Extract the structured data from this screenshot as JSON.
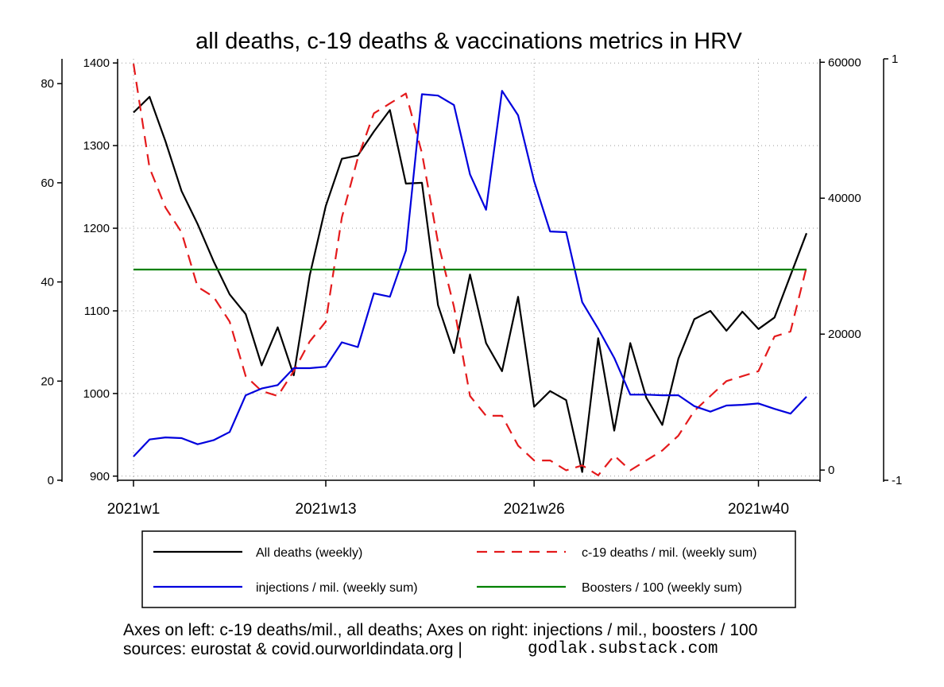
{
  "chart_data": {
    "type": "line",
    "title": "all deaths, c-19 deaths & vaccinations metrics in HRV",
    "x_ticks": [
      {
        "week": 1,
        "label": "2021w1"
      },
      {
        "week": 13,
        "label": "2021w13"
      },
      {
        "week": 26,
        "label": "2021w26"
      },
      {
        "week": 40,
        "label": "2021w40"
      }
    ],
    "x_range": [
      1,
      43
    ],
    "axes": {
      "left_outer": {
        "range": [
          0,
          85
        ],
        "ticks": [
          0,
          20,
          40,
          60,
          80
        ],
        "tick_labels": [
          "0",
          "20",
          "40",
          "60",
          "80"
        ]
      },
      "left_inner": {
        "range": [
          895,
          1405
        ],
        "ticks": [
          900,
          1000,
          1100,
          1200,
          1300,
          1400
        ],
        "tick_labels": [
          "900",
          "1000",
          "1100",
          "1200",
          "1300",
          "1400"
        ]
      },
      "right_inner": {
        "range": [
          -1500,
          60500
        ],
        "ticks": [
          0,
          20000,
          40000,
          60000
        ],
        "tick_labels": [
          "0",
          "20000",
          "40000",
          "60000"
        ]
      },
      "right_outer": {
        "range": [
          -1,
          1
        ],
        "ticks": [
          -1,
          1
        ],
        "tick_labels": [
          "-1",
          "1"
        ]
      }
    },
    "grid": true,
    "legend_position": "bottom",
    "series": [
      {
        "name": "All deaths (weekly)",
        "axis": "left_inner",
        "color": "#000000",
        "dash": "solid",
        "x": [
          1,
          2,
          3,
          4,
          5,
          6,
          7,
          8,
          9,
          10,
          11,
          12,
          13,
          14,
          15,
          16,
          17,
          18,
          19,
          20,
          21,
          22,
          23,
          24,
          25,
          26,
          27,
          28,
          29,
          30,
          31,
          32,
          33,
          34,
          35,
          36,
          37,
          38,
          39,
          40,
          41,
          42,
          43
        ],
        "values": [
          1340,
          1359,
          1305,
          1245,
          1205,
          1160,
          1120,
          1096,
          1034,
          1080,
          1022,
          1143,
          1227,
          1284,
          1288,
          1317,
          1343,
          1254,
          1255,
          1107,
          1049,
          1144,
          1061,
          1027,
          1117,
          984,
          1003,
          992,
          905,
          1067,
          955,
          1061,
          995,
          962,
          1042,
          1090,
          1100,
          1076,
          1099,
          1078,
          1092,
          1143,
          1194
        ]
      },
      {
        "name": "c-19 deaths / mil. (weekly sum)",
        "axis": "left_outer",
        "color": "#e41a1c",
        "dash": "dashed",
        "x": [
          1,
          2,
          3,
          4,
          5,
          6,
          7,
          8,
          9,
          10,
          11,
          12,
          13,
          14,
          15,
          16,
          17,
          18,
          19,
          20,
          21,
          22,
          23,
          24,
          25,
          26,
          27,
          28,
          29,
          30,
          31,
          32,
          33,
          34,
          35,
          36,
          37,
          38,
          39,
          40,
          41,
          42,
          43
        ],
        "values": [
          84,
          63,
          55,
          50,
          39,
          37,
          32,
          21,
          18,
          17,
          22,
          28,
          32,
          53,
          65,
          74,
          76,
          78,
          66,
          48,
          35,
          17,
          13,
          13,
          7,
          4,
          4,
          2,
          3,
          1,
          5,
          2,
          4,
          6,
          9,
          14,
          17,
          20,
          21,
          22,
          29,
          30,
          43
        ]
      },
      {
        "name": "injections / mil. (weekly sum)",
        "axis": "right_inner",
        "color": "#0000dd",
        "dash": "solid",
        "x": [
          1,
          2,
          3,
          4,
          5,
          6,
          7,
          8,
          9,
          10,
          11,
          12,
          13,
          14,
          15,
          16,
          17,
          18,
          19,
          20,
          21,
          22,
          23,
          24,
          25,
          26,
          27,
          28,
          29,
          30,
          31,
          32,
          33,
          34,
          35,
          36,
          37,
          38,
          39,
          40,
          41,
          42,
          43
        ],
        "values": [
          2000,
          4500,
          4800,
          4700,
          3800,
          4400,
          5600,
          11000,
          12000,
          12500,
          15000,
          15000,
          15200,
          18800,
          18100,
          26000,
          25500,
          32300,
          55300,
          55100,
          53700,
          43500,
          38300,
          55800,
          52200,
          42500,
          35100,
          35000,
          24700,
          20800,
          16500,
          11100,
          11100,
          11000,
          11000,
          9400,
          8600,
          9500,
          9600,
          9800,
          9000,
          8300,
          10800
        ]
      },
      {
        "name": "Boosters / 100 (weekly sum)",
        "axis": "right_outer",
        "color": "#008000",
        "dash": "solid",
        "x": [
          1,
          43
        ],
        "values": [
          0,
          0
        ]
      }
    ]
  },
  "footer": {
    "line1": "Axes on left: c-19 deaths/mil., all deaths; Axes on right: injections / mil., boosters / 100",
    "line2": "sources: eurostat & covid.ourworldindata.org |",
    "watermark": "godlak.substack.com"
  }
}
